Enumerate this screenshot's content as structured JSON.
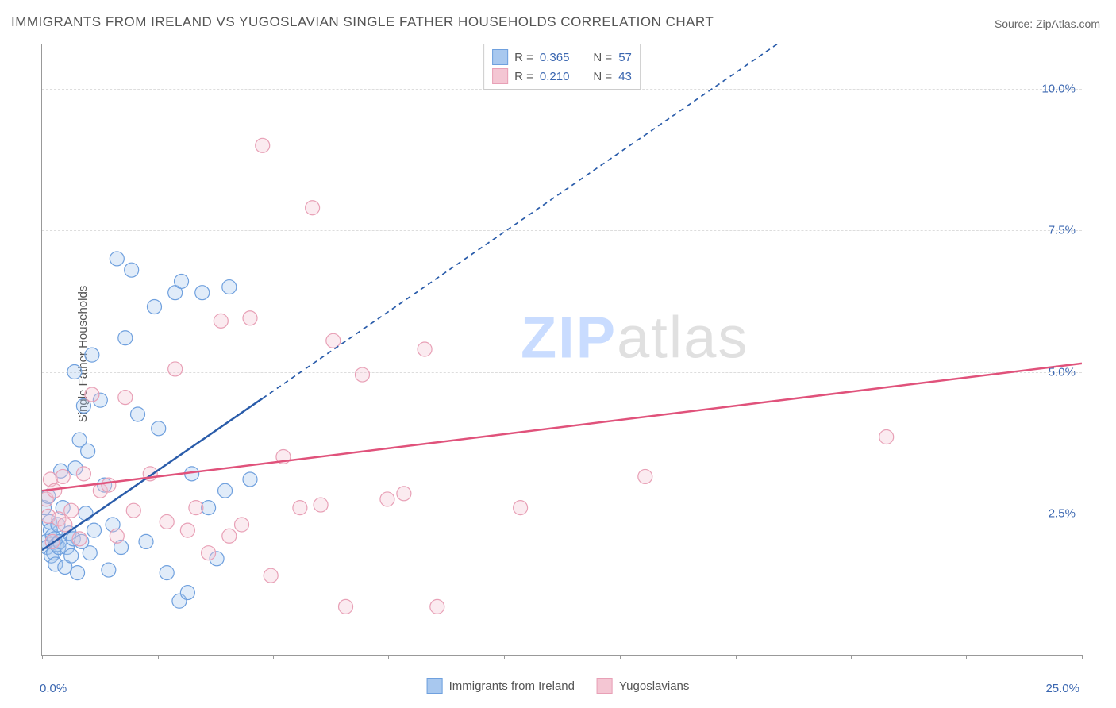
{
  "title": "IMMIGRANTS FROM IRELAND VS YUGOSLAVIAN SINGLE FATHER HOUSEHOLDS CORRELATION CHART",
  "source_prefix": "Source: ",
  "source_name": "ZipAtlas.com",
  "ylabel": "Single Father Households",
  "watermark_a": "ZIP",
  "watermark_b": "atlas",
  "chart": {
    "type": "scatter",
    "xlim": [
      0,
      25
    ],
    "ylim": [
      0,
      10.8
    ],
    "y_gridlines": [
      2.5,
      5.0,
      7.5,
      10.0
    ],
    "y_tick_labels": [
      "2.5%",
      "5.0%",
      "7.5%",
      "10.0%"
    ],
    "x_tick_positions": [
      0,
      2.78,
      5.56,
      8.33,
      11.11,
      13.89,
      16.67,
      19.44,
      22.22,
      25
    ],
    "x_min_label": "0.0%",
    "x_max_label": "25.0%",
    "background_color": "#ffffff",
    "grid_color": "#dddddd",
    "axis_color": "#999999",
    "tick_label_color": "#3a66b0",
    "marker_radius": 9,
    "marker_stroke_width": 1.2,
    "marker_fill_opacity": 0.35,
    "trend_line_width": 2.5,
    "trend_dash": "6 5"
  },
  "series": [
    {
      "name": "Immigrants from Ireland",
      "color_stroke": "#6fa0de",
      "color_fill": "#a8c8ef",
      "trend_color": "#2a5caa",
      "R": "0.365",
      "N": "57",
      "trend": {
        "x1": 0,
        "y1": 1.85,
        "x2": 25,
        "y2": 14.5,
        "solid_until_x": 5.3
      },
      "points": [
        [
          0.05,
          2.6
        ],
        [
          0.1,
          2.0
        ],
        [
          0.12,
          1.9
        ],
        [
          0.15,
          2.8
        ],
        [
          0.18,
          2.35
        ],
        [
          0.2,
          2.2
        ],
        [
          0.22,
          1.75
        ],
        [
          0.25,
          2.1
        ],
        [
          0.28,
          1.8
        ],
        [
          0.3,
          2.05
        ],
        [
          0.32,
          1.6
        ],
        [
          0.35,
          1.95
        ],
        [
          0.38,
          2.3
        ],
        [
          0.4,
          1.9
        ],
        [
          0.42,
          2.0
        ],
        [
          0.45,
          3.25
        ],
        [
          0.5,
          2.6
        ],
        [
          0.55,
          1.55
        ],
        [
          0.6,
          1.9
        ],
        [
          0.65,
          2.15
        ],
        [
          0.7,
          1.75
        ],
        [
          0.75,
          2.05
        ],
        [
          0.78,
          5.0
        ],
        [
          0.8,
          3.3
        ],
        [
          0.85,
          1.45
        ],
        [
          0.9,
          3.8
        ],
        [
          0.95,
          2.0
        ],
        [
          1.0,
          4.4
        ],
        [
          1.05,
          2.5
        ],
        [
          1.1,
          3.6
        ],
        [
          1.15,
          1.8
        ],
        [
          1.2,
          5.3
        ],
        [
          1.25,
          2.2
        ],
        [
          1.4,
          4.5
        ],
        [
          1.5,
          3.0
        ],
        [
          1.6,
          1.5
        ],
        [
          1.7,
          2.3
        ],
        [
          1.8,
          7.0
        ],
        [
          1.9,
          1.9
        ],
        [
          2.0,
          5.6
        ],
        [
          2.15,
          6.8
        ],
        [
          2.3,
          4.25
        ],
        [
          2.5,
          2.0
        ],
        [
          2.7,
          6.15
        ],
        [
          2.8,
          4.0
        ],
        [
          3.0,
          1.45
        ],
        [
          3.2,
          6.4
        ],
        [
          3.3,
          0.95
        ],
        [
          3.35,
          6.6
        ],
        [
          3.5,
          1.1
        ],
        [
          3.6,
          3.2
        ],
        [
          3.85,
          6.4
        ],
        [
          4.0,
          2.6
        ],
        [
          4.2,
          1.7
        ],
        [
          4.4,
          2.9
        ],
        [
          4.5,
          6.5
        ],
        [
          5.0,
          3.1
        ]
      ]
    },
    {
      "name": "Yugoslavians",
      "color_stroke": "#e8a0b6",
      "color_fill": "#f4c6d3",
      "trend_color": "#e0527b",
      "R": "0.210",
      "N": "43",
      "trend": {
        "x1": 0,
        "y1": 2.9,
        "x2": 25,
        "y2": 5.15,
        "solid_until_x": 25
      },
      "points": [
        [
          0.1,
          2.75
        ],
        [
          0.15,
          2.45
        ],
        [
          0.2,
          3.1
        ],
        [
          0.25,
          2.0
        ],
        [
          0.3,
          2.9
        ],
        [
          0.4,
          2.4
        ],
        [
          0.5,
          3.15
        ],
        [
          0.55,
          2.3
        ],
        [
          0.7,
          2.55
        ],
        [
          0.9,
          2.05
        ],
        [
          1.0,
          3.2
        ],
        [
          1.2,
          4.6
        ],
        [
          1.4,
          2.9
        ],
        [
          1.6,
          3.0
        ],
        [
          1.8,
          2.1
        ],
        [
          2.0,
          4.55
        ],
        [
          2.2,
          2.55
        ],
        [
          2.6,
          3.2
        ],
        [
          3.0,
          2.35
        ],
        [
          3.2,
          5.05
        ],
        [
          3.5,
          2.2
        ],
        [
          3.7,
          2.6
        ],
        [
          4.0,
          1.8
        ],
        [
          4.3,
          5.9
        ],
        [
          4.5,
          2.1
        ],
        [
          4.8,
          2.3
        ],
        [
          5.0,
          5.95
        ],
        [
          5.3,
          9.0
        ],
        [
          5.5,
          1.4
        ],
        [
          5.8,
          3.5
        ],
        [
          6.2,
          2.6
        ],
        [
          6.5,
          7.9
        ],
        [
          6.7,
          2.65
        ],
        [
          7.0,
          5.55
        ],
        [
          7.3,
          0.85
        ],
        [
          7.7,
          4.95
        ],
        [
          8.3,
          2.75
        ],
        [
          8.7,
          2.85
        ],
        [
          9.2,
          5.4
        ],
        [
          9.5,
          0.85
        ],
        [
          11.5,
          2.6
        ],
        [
          14.5,
          3.15
        ],
        [
          20.3,
          3.85
        ]
      ]
    }
  ],
  "legend_top": {
    "R_label": "R =",
    "N_label": "N ="
  },
  "legend_bottom": {
    "items": [
      "Immigrants from Ireland",
      "Yugoslavians"
    ]
  }
}
